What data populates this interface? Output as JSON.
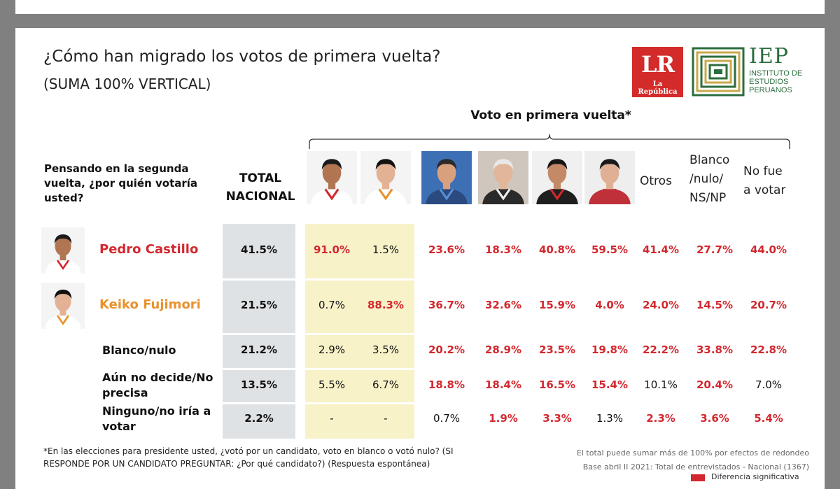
{
  "header": {
    "title": "¿Cómo han migrado los votos de primera vuelta?",
    "subtitle": "(SUMA 100% VERTICAL)"
  },
  "logos": {
    "lr_main": "LR",
    "lr_sub": "La República",
    "iep_main": "IEP",
    "iep_sub_1": "INSTITUTO DE",
    "iep_sub_2": "ESTUDIOS",
    "iep_sub_3": "PERUANOS",
    "lr_color": "#d32a2a",
    "iep_color": "#2b6e3e"
  },
  "chart_data": {
    "type": "table",
    "group_label": "Voto en primera vuelta*",
    "question": "Pensando en la segunda vuelta, ¿por quién votaría usted?",
    "total_header_1": "TOTAL",
    "total_header_2": "NACIONAL",
    "columns": [
      {
        "kind": "photo",
        "icon": "candidate-1-photo"
      },
      {
        "kind": "photo",
        "icon": "candidate-2-photo"
      },
      {
        "kind": "photo",
        "icon": "candidate-3-photo"
      },
      {
        "kind": "photo",
        "icon": "candidate-4-photo"
      },
      {
        "kind": "photo",
        "icon": "candidate-5-photo"
      },
      {
        "kind": "photo",
        "icon": "candidate-6-photo"
      },
      {
        "kind": "text",
        "lines": [
          "Otros"
        ]
      },
      {
        "kind": "text",
        "lines": [
          "Blanco",
          "/nulo/",
          "NS/NP"
        ]
      },
      {
        "kind": "text",
        "lines": [
          "No fue",
          "a votar"
        ]
      }
    ],
    "rows": [
      {
        "label": "Pedro Castillo",
        "label_color": "#d3282f",
        "total": "41.5%",
        "values": [
          "91.0%",
          "1.5%",
          "23.6%",
          "18.3%",
          "40.8%",
          "59.5%",
          "41.4%",
          "27.7%",
          "44.0%"
        ],
        "significant": [
          true,
          false,
          true,
          true,
          true,
          true,
          true,
          true,
          true
        ]
      },
      {
        "label": "Keiko Fujimori",
        "label_color": "#e8922e",
        "total": "21.5%",
        "values": [
          "0.7%",
          "88.3%",
          "36.7%",
          "32.6%",
          "15.9%",
          "4.0%",
          "24.0%",
          "14.5%",
          "20.7%"
        ],
        "significant": [
          false,
          true,
          true,
          true,
          true,
          true,
          true,
          true,
          true
        ]
      },
      {
        "label": "Blanco/nulo",
        "label_color": "#111111",
        "total": "21.2%",
        "values": [
          "2.9%",
          "3.5%",
          "20.2%",
          "28.9%",
          "23.5%",
          "19.8%",
          "22.2%",
          "33.8%",
          "22.8%"
        ],
        "significant": [
          false,
          false,
          true,
          true,
          true,
          true,
          true,
          true,
          true
        ]
      },
      {
        "label": "Aún no decide/No precisa",
        "label_color": "#111111",
        "total": "13.5%",
        "values": [
          "5.5%",
          "6.7%",
          "18.8%",
          "18.4%",
          "16.5%",
          "15.4%",
          "10.1%",
          "20.4%",
          "7.0%"
        ],
        "significant": [
          false,
          false,
          true,
          true,
          true,
          true,
          false,
          true,
          false
        ]
      },
      {
        "label": "Ninguno/no iría a votar",
        "label_color": "#111111",
        "total": "2.2%",
        "values": [
          "-",
          "-",
          "0.7%",
          "1.9%",
          "3.3%",
          "1.3%",
          "2.3%",
          "3.6%",
          "5.4%"
        ],
        "significant": [
          false,
          false,
          false,
          true,
          true,
          false,
          true,
          true,
          true
        ]
      }
    ],
    "significant_color": "#d3282f"
  },
  "footer": {
    "footnote": "*En las elecciones para presidente usted, ¿votó por un candidato, voto en blanco o votó nulo? (SI RESPONDE POR UN CANDIDATO PREGUNTAR: ¿Por qué candidato?) (Respuesta espontánea)",
    "note_1": "El total puede sumar más de 100% por efectos de redondeo",
    "note_2": "Base abril II 2021: Total de entrevistados - Nacional (1367)",
    "legend_label": "Diferencia significativa"
  }
}
